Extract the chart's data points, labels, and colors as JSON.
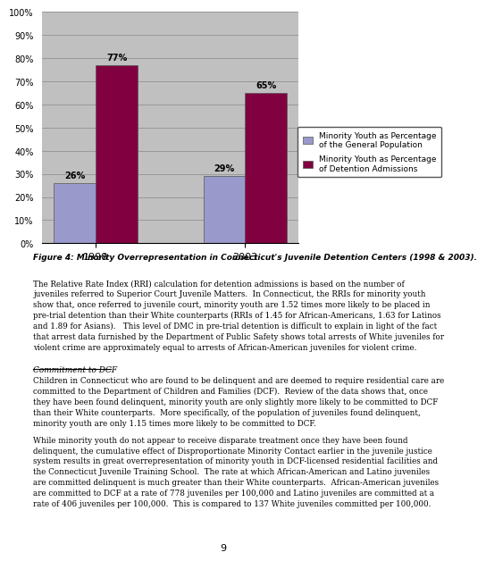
{
  "categories": [
    "1998",
    "2003"
  ],
  "series1_values": [
    26,
    29
  ],
  "series2_values": [
    77,
    65
  ],
  "series1_color": "#9999cc",
  "series2_color": "#800040",
  "series1_label": "Minority Youth as Percentage\nof the General Population",
  "series2_label": "Minority Youth as Percentage\nof Detention Admissions",
  "series1_labels": [
    "26%",
    "29%"
  ],
  "series2_labels": [
    "77%",
    "65%"
  ],
  "yticks": [
    0,
    10,
    20,
    30,
    40,
    50,
    60,
    70,
    80,
    90,
    100
  ],
  "ytick_labels": [
    "0%",
    "10%",
    "20%",
    "30%",
    "40%",
    "50%",
    "60%",
    "70%",
    "80%",
    "90%",
    "100%"
  ],
  "ylim": [
    0,
    100
  ],
  "chart_bg": "#c0c0c0",
  "outer_bg": "#ffffff",
  "figure_caption": "Figure 4: Minority Overrepresentation in Connecticut's Juvenile Detention Centers (1998 & 2003).",
  "body_text1": "The Relative Rate Index (RRI) calculation for detention admissions is based on the number of\njuveniles referred to Superior Court Juvenile Matters.  In Connecticut, the RRIs for minority youth\nshow that, once referred to juvenile court, minority youth are 1.52 times more likely to be placed in\npre-trial detention than their White counterparts (RRIs of 1.45 for African-Americans, 1.63 for Latinos\nand 1.89 for Asians).   This level of DMC in pre-trial detention is difficult to explain in light of the fact\nthat arrest data furnished by the Department of Public Safety shows total arrests of White juveniles for\nviolent crime are approximately equal to arrests of African-American juveniles for violent crime.",
  "commitment_header": "Commitment to DCF",
  "body_text2": "Children in Connecticut who are found to be delinquent and are deemed to require residential care are\ncommitted to the Department of Children and Families (DCF).  Review of the data shows that, once\nthey have been found delinquent, minority youth are only slightly more likely to be committed to DCF\nthan their White counterparts.  More specifically, of the population of juveniles found delinquent,\nminority youth are only 1.15 times more likely to be committed to DCF.",
  "body_text3": "While minority youth do not appear to receive disparate treatment once they have been found\ndelinquent, the cumulative effect of Disproportionate Minority Contact earlier in the juvenile justice\nsystem results in great overrepresentation of minority youth in DCF-licensed residential facilities and\nthe Connecticut Juvenile Training School.  The rate at which African-American and Latino juveniles\nare committed delinquent is much greater than their White counterparts.  African-American juveniles\nare committed to DCF at a rate of 778 juveniles per 100,000 and Latino juveniles are committed at a\nrate of 406 juveniles per 100,000.  This is compared to 137 White juveniles committed per 100,000.",
  "page_number": "9"
}
